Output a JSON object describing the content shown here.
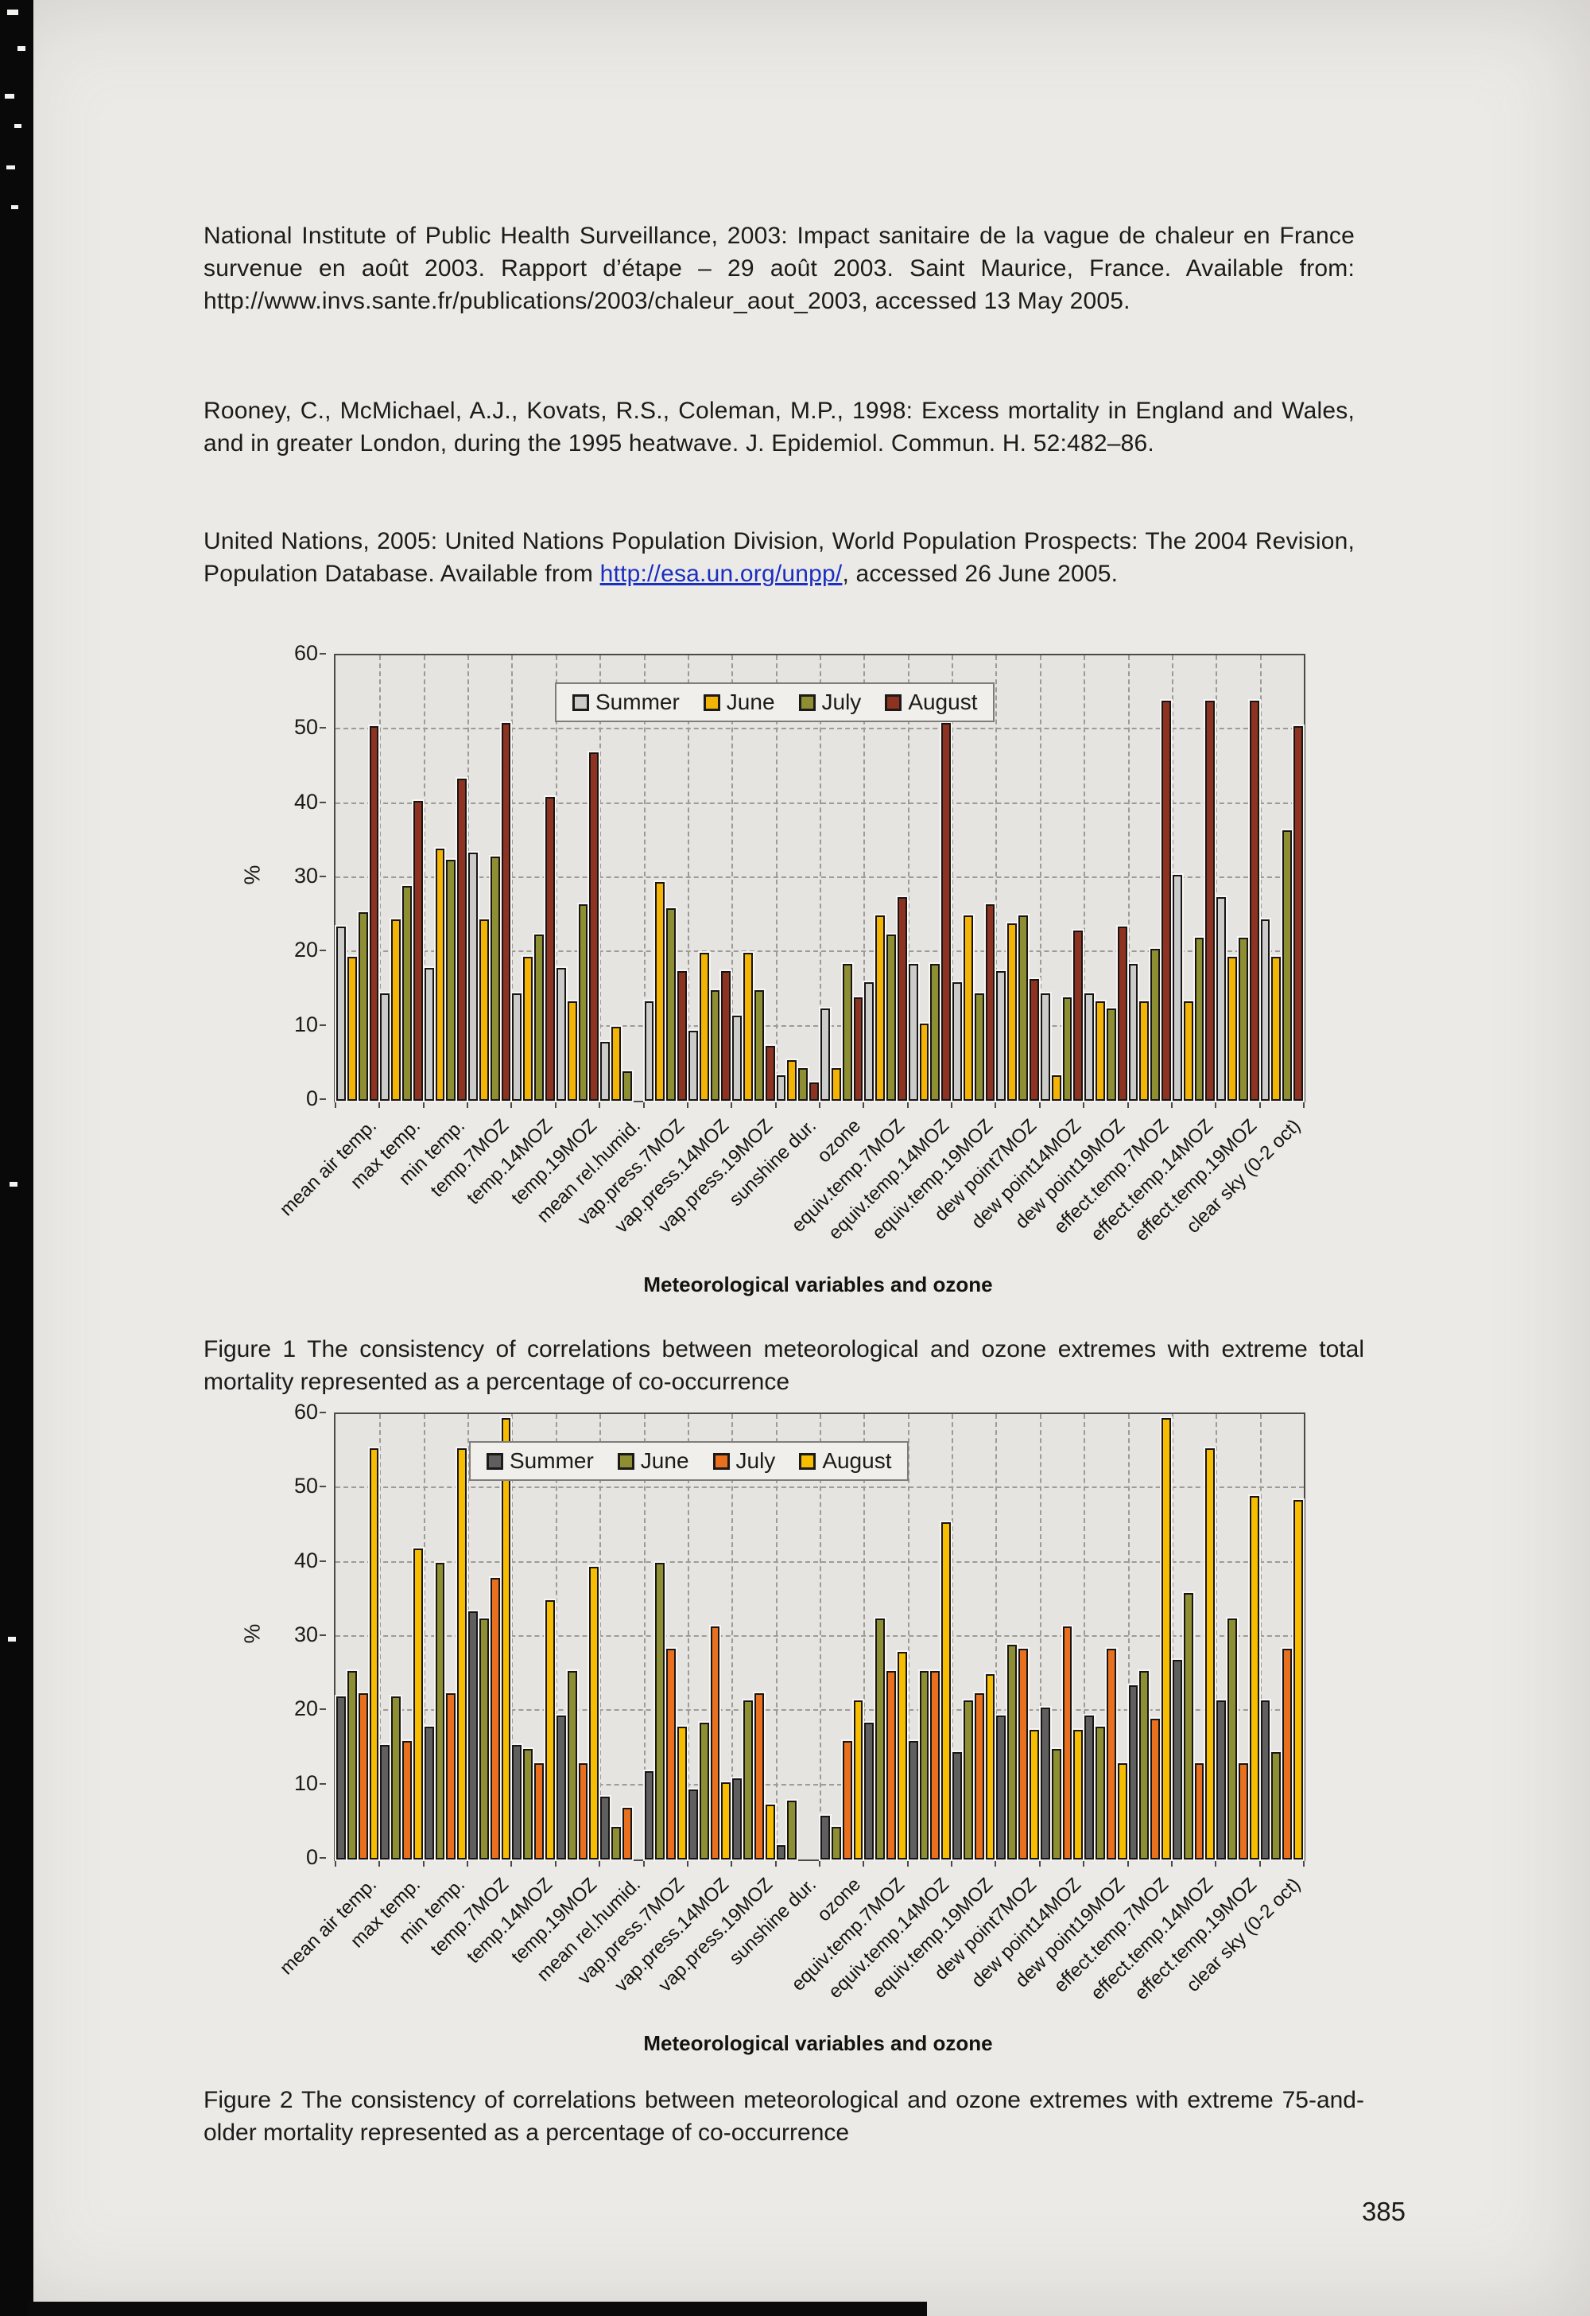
{
  "page": {
    "number": "385"
  },
  "references": [
    {
      "text": "National Institute of Public Health Surveillance, 2003: Impact sanitaire de la vague de chaleur en France survenue en août 2003. Rapport d’étape – 29 août 2003. Saint Maurice, France. Available from: http://www.invs.sante.fr/publications/2003/chaleur_aout_2003, accessed 13 May 2005."
    },
    {
      "text": "Rooney, C., McMichael, A.J., Kovats, R.S., Coleman, M.P., 1998: Excess mortality in England and Wales, and in greater London, during the 1995 heatwave. J. Epidemiol. Commun. H. 52:482–86."
    },
    {
      "text_before_link": "United Nations, 2005: United Nations Population Division, World Population Prospects: The 2004 Revision, Population Database. Available from ",
      "link": "http://esa.un.org/unpp/",
      "text_after_link": ", accessed 26 June 2005."
    }
  ],
  "figure1": {
    "caption": "Figure 1 The consistency of correlations between meteorological and ozone extremes with extreme total mortality represented as a percentage of co-occurrence"
  },
  "figure2": {
    "caption": "Figure 2 The consistency of correlations between meteorological and ozone extremes with extreme 75-and-older mortality represented as a percentage of co-occurrence"
  },
  "chart_data": [
    {
      "type": "bar",
      "title": "",
      "xlabel": "Meteorological variables and ozone",
      "ylabel": "%",
      "ylim": [
        0,
        60
      ],
      "yticks": [
        0,
        10,
        20,
        30,
        40,
        50,
        60
      ],
      "grid": true,
      "legend_position": "top-center-inside",
      "categories": [
        "mean air temp.",
        "max temp.",
        "min temp.",
        "temp.7MOZ",
        "temp.14MOZ",
        "temp.19MOZ",
        "mean rel.humid.",
        "vap.press.7MOZ",
        "vap.press.14MOZ",
        "vap.press.19MOZ",
        "sunshine dur.",
        "ozone",
        "equiv.temp.7MOZ",
        "equiv.temp.14MOZ",
        "equiv.temp.19MOZ",
        "dew point7MOZ",
        "dew point14MOZ",
        "dew point19MOZ",
        "effect.temp.7MOZ",
        "effect.temp.14MOZ",
        "effect.temp.19MOZ",
        "clear sky (0-2 oct)"
      ],
      "series": [
        {
          "name": "Summer",
          "color": "#cbcbc9",
          "values": [
            23,
            14,
            17.5,
            33,
            14,
            17.5,
            7.5,
            13,
            9,
            11,
            3,
            12,
            15.5,
            18,
            15.5,
            17,
            14,
            14,
            18,
            30,
            27,
            24
          ]
        },
        {
          "name": "June",
          "color": "#f4b405",
          "values": [
            19,
            24,
            33.5,
            24,
            19,
            13,
            9.5,
            29,
            19.5,
            19.5,
            5,
            4,
            24.5,
            10,
            24.5,
            23.5,
            3,
            13,
            13,
            13,
            19,
            19
          ]
        },
        {
          "name": "July",
          "color": "#8e8e33",
          "values": [
            25,
            28.5,
            32,
            32.5,
            22,
            26,
            3.5,
            25.5,
            14.5,
            14.5,
            4,
            18,
            22,
            18,
            14,
            24.5,
            13.5,
            12,
            20,
            21.5,
            21.5,
            36
          ]
        },
        {
          "name": "August",
          "color": "#8e3221",
          "values": [
            50,
            40,
            43,
            50.5,
            40.5,
            46.5,
            0,
            17,
            17,
            7,
            2,
            13.5,
            27,
            50.5,
            26,
            16,
            22.5,
            23,
            53.5,
            53.5,
            53.5,
            50
          ]
        }
      ]
    },
    {
      "type": "bar",
      "title": "",
      "xlabel": "Meteorological variables and ozone",
      "ylabel": "%",
      "ylim": [
        0,
        60
      ],
      "yticks": [
        0,
        10,
        20,
        30,
        40,
        50,
        60
      ],
      "grid": true,
      "legend_position": "top-center-inside",
      "categories": [
        "mean air temp.",
        "max temp.",
        "min temp.",
        "temp.7MOZ",
        "temp.14MOZ",
        "temp.19MOZ",
        "mean rel.humid.",
        "vap.press.7MOZ",
        "vap.press.14MOZ",
        "vap.press.19MOZ",
        "sunshine dur.",
        "ozone",
        "equiv.temp.7MOZ",
        "equiv.temp.14MOZ",
        "equiv.temp.19MOZ",
        "dew point7MOZ",
        "dew point14MOZ",
        "dew point19MOZ",
        "effect.temp.7MOZ",
        "effect.temp.14MOZ",
        "effect.temp.19MOZ",
        "clear sky (0-2 oct)"
      ],
      "series": [
        {
          "name": "Summer",
          "color": "#5f5f5f",
          "values": [
            21.5,
            15,
            17.5,
            33,
            15,
            19,
            8,
            11.5,
            9,
            10.5,
            1.5,
            5.5,
            18,
            15.5,
            14,
            19,
            20,
            19,
            23,
            26.5,
            21,
            21
          ]
        },
        {
          "name": "June",
          "color": "#8e8e33",
          "values": [
            25,
            21.5,
            39.5,
            32,
            14.5,
            25,
            4,
            39.5,
            18,
            21,
            7.5,
            4,
            32,
            25,
            21,
            28.5,
            14.5,
            17.5,
            25,
            35.5,
            32,
            14
          ]
        },
        {
          "name": "July",
          "color": "#e8701f",
          "values": [
            22,
            15.5,
            22,
            37.5,
            12.5,
            12.5,
            6.5,
            28,
            31,
            22,
            0,
            15.5,
            25,
            25,
            22,
            28,
            31,
            28,
            18.5,
            12.5,
            12.5,
            28
          ]
        },
        {
          "name": "August",
          "color": "#f7bd00",
          "values": [
            55,
            41.5,
            55,
            59,
            34.5,
            39,
            0,
            17.5,
            10,
            7,
            0,
            21,
            27.5,
            45,
            24.5,
            17,
            17,
            12.5,
            59,
            55,
            48.5,
            48
          ]
        }
      ]
    }
  ]
}
